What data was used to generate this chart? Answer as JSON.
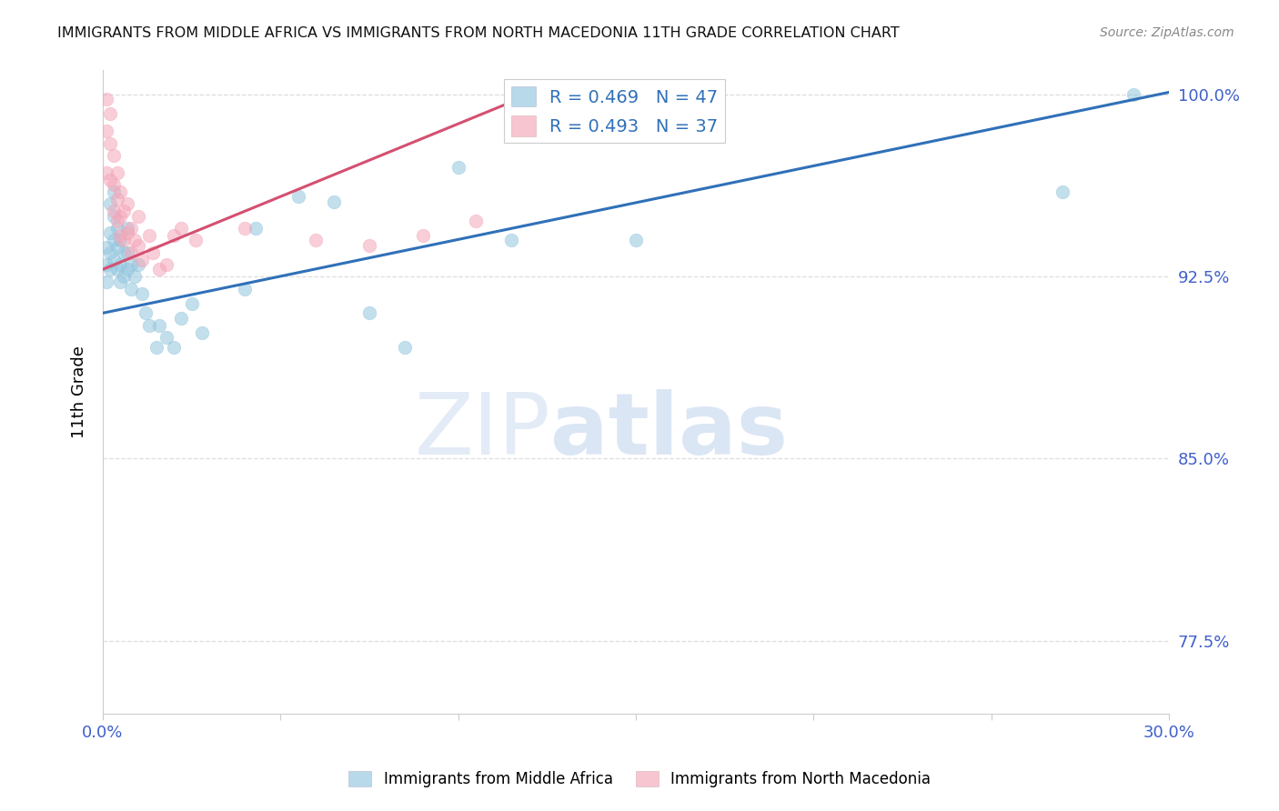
{
  "title": "IMMIGRANTS FROM MIDDLE AFRICA VS IMMIGRANTS FROM NORTH MACEDONIA 11TH GRADE CORRELATION CHART",
  "source": "Source: ZipAtlas.com",
  "ylabel": "11th Grade",
  "xlim": [
    0.0,
    0.3
  ],
  "ylim": [
    0.745,
    1.01
  ],
  "xticks": [
    0.0,
    0.05,
    0.1,
    0.15,
    0.2,
    0.25,
    0.3
  ],
  "xticklabels": [
    "0.0%",
    "",
    "",
    "",
    "",
    "",
    "30.0%"
  ],
  "yticks": [
    0.775,
    0.85,
    0.925,
    1.0
  ],
  "yticklabels": [
    "77.5%",
    "85.0%",
    "92.5%",
    "100.0%"
  ],
  "legend1_label": "R = 0.469   N = 47",
  "legend2_label": "R = 0.493   N = 37",
  "blue_color": "#92c5de",
  "pink_color": "#f4a6b8",
  "blue_line_color": "#3070b8",
  "pink_line_color": "#d45070",
  "blue_scatter_x": [
    0.001,
    0.001,
    0.001,
    0.002,
    0.002,
    0.002,
    0.002,
    0.003,
    0.003,
    0.003,
    0.003,
    0.004,
    0.004,
    0.004,
    0.005,
    0.005,
    0.005,
    0.006,
    0.006,
    0.007,
    0.007,
    0.007,
    0.008,
    0.008,
    0.009,
    0.01,
    0.011,
    0.012,
    0.013,
    0.015,
    0.016,
    0.018,
    0.02,
    0.022,
    0.025,
    0.028,
    0.04,
    0.043,
    0.055,
    0.065,
    0.075,
    0.085,
    0.1,
    0.115,
    0.15,
    0.27,
    0.29
  ],
  "blue_scatter_y": [
    0.937,
    0.93,
    0.923,
    0.955,
    0.943,
    0.935,
    0.928,
    0.96,
    0.95,
    0.94,
    0.932,
    0.945,
    0.937,
    0.928,
    0.93,
    0.94,
    0.923,
    0.935,
    0.925,
    0.945,
    0.935,
    0.928,
    0.93,
    0.92,
    0.925,
    0.93,
    0.918,
    0.91,
    0.905,
    0.896,
    0.905,
    0.9,
    0.896,
    0.908,
    0.914,
    0.902,
    0.92,
    0.945,
    0.958,
    0.956,
    0.91,
    0.896,
    0.97,
    0.94,
    0.94,
    0.96,
    1.0
  ],
  "pink_scatter_x": [
    0.001,
    0.001,
    0.001,
    0.002,
    0.002,
    0.002,
    0.003,
    0.003,
    0.003,
    0.004,
    0.004,
    0.004,
    0.005,
    0.005,
    0.005,
    0.006,
    0.006,
    0.007,
    0.007,
    0.008,
    0.008,
    0.009,
    0.01,
    0.01,
    0.011,
    0.013,
    0.014,
    0.016,
    0.018,
    0.02,
    0.022,
    0.026,
    0.04,
    0.06,
    0.075,
    0.09,
    0.105
  ],
  "pink_scatter_y": [
    0.998,
    0.985,
    0.968,
    0.992,
    0.98,
    0.965,
    0.975,
    0.963,
    0.952,
    0.968,
    0.957,
    0.948,
    0.96,
    0.95,
    0.942,
    0.952,
    0.94,
    0.955,
    0.943,
    0.945,
    0.935,
    0.94,
    0.95,
    0.938,
    0.932,
    0.942,
    0.935,
    0.928,
    0.93,
    0.942,
    0.945,
    0.94,
    0.945,
    0.94,
    0.938,
    0.942,
    0.948
  ],
  "blue_trendline_x": [
    0.0,
    0.3
  ],
  "blue_trendline_y": [
    0.91,
    1.001
  ],
  "pink_trendline_x": [
    0.0,
    0.115
  ],
  "pink_trendline_y": [
    0.928,
    0.997
  ],
  "watermark_zip": "ZIP",
  "watermark_atlas": "atlas",
  "background_color": "#ffffff",
  "grid_color": "#dddddd",
  "tick_label_color": "#4060cc",
  "title_color": "#111111",
  "source_color": "#888888"
}
